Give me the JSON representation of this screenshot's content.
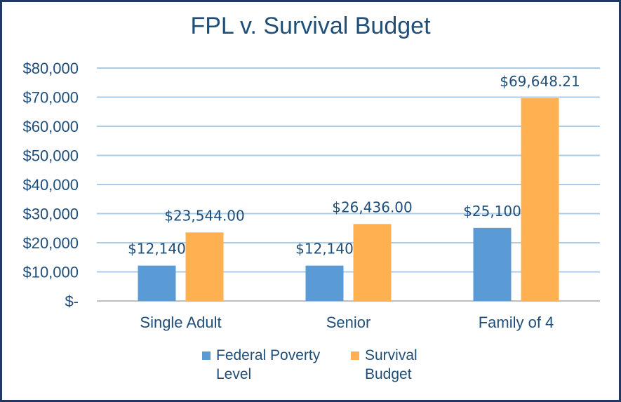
{
  "chart_data": {
    "type": "bar",
    "title": "FPL v. Survival Budget",
    "categories": [
      "Single Adult",
      "Senior",
      "Family of 4"
    ],
    "series": [
      {
        "name": "Federal Poverty Level",
        "color": "#5b9bd5",
        "values": [
          12140,
          12140,
          25100
        ],
        "labels": [
          "$12,140",
          "$12,140",
          "$25,100"
        ]
      },
      {
        "name": "Survival Budget",
        "color": "#ffb050",
        "values": [
          23544.0,
          26436.0,
          69648.21
        ],
        "labels": [
          "$23,544.00",
          "$26,436.00",
          "$69,648.21"
        ]
      }
    ],
    "ylim": [
      0,
      80000
    ],
    "yticks": [
      0,
      10000,
      20000,
      30000,
      40000,
      50000,
      60000,
      70000,
      80000
    ],
    "ytick_labels": [
      "$-",
      "$10,000",
      "$20,000",
      "$30,000",
      "$40,000",
      "$50,000",
      "$60,000",
      "$70,000",
      "$80,000"
    ],
    "grid": true,
    "legend_position": "bottom"
  }
}
